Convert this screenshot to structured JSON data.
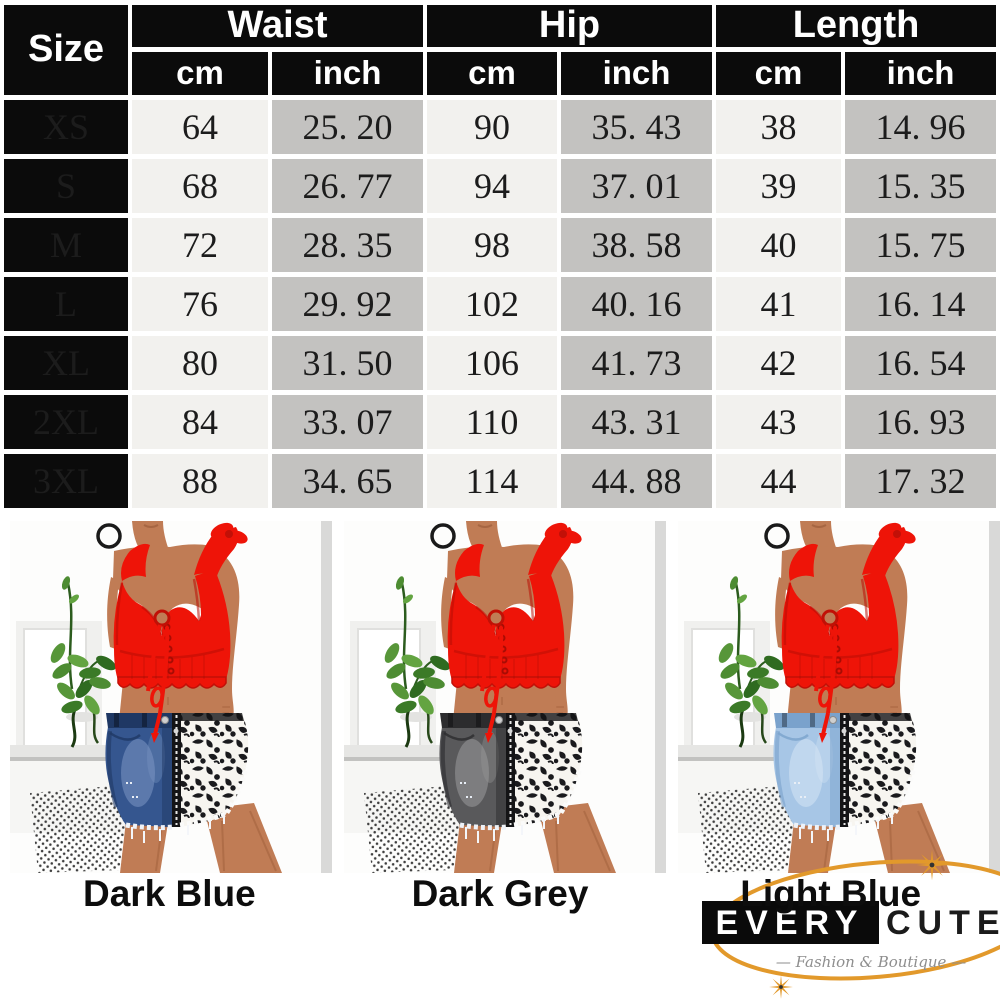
{
  "size_chart": {
    "corner_label": "Size",
    "groups": [
      "Waist",
      "Hip",
      "Length"
    ],
    "units": [
      "cm",
      "inch"
    ],
    "rows": [
      [
        "XS",
        "64",
        "25. 20",
        "90",
        "35. 43",
        "38",
        "14. 96"
      ],
      [
        "S",
        "68",
        "26. 77",
        "94",
        "37. 01",
        "39",
        "15. 35"
      ],
      [
        "M",
        "72",
        "28. 35",
        "98",
        "38. 58",
        "40",
        "15. 75"
      ],
      [
        "L",
        "76",
        "29. 92",
        "102",
        "40. 16",
        "41",
        "16. 14"
      ],
      [
        "XL",
        "80",
        "31. 50",
        "106",
        "41. 73",
        "42",
        "16. 54"
      ],
      [
        "2XL",
        "84",
        "33. 07",
        "110",
        "43. 31",
        "43",
        "16. 93"
      ],
      [
        "3XL",
        "88",
        "34. 65",
        "114",
        "44. 88",
        "44",
        "17. 32"
      ]
    ]
  },
  "products": [
    {
      "label": "Dark Blue",
      "denim_base": "#35568f",
      "denim_light": "#7b97c4",
      "denim_dark": "#1f3864"
    },
    {
      "label": "Dark Grey",
      "denim_base": "#59595b",
      "denim_light": "#9a9a9c",
      "denim_dark": "#2c2c2e"
    },
    {
      "label": "Light Blue",
      "denim_base": "#a7c6e6",
      "denim_light": "#d6e5f4",
      "denim_dark": "#7aa2cc"
    }
  ],
  "logo": {
    "brand_left": "EVERY",
    "brand_right": "CUTE",
    "tagline": "Fashion & Boutique",
    "gold": "#e2992b"
  },
  "palette": {
    "table_black": "#0b0b0b",
    "cell_light": "#f2f1ee",
    "cell_gray": "#c3c2c0",
    "skin": "#c07c55",
    "skin_shadow": "#a5633e",
    "top_red": "#ee1408",
    "top_red_dark": "#b90e05",
    "gold": "#e2992b",
    "leo_bg": "#f7f5f0",
    "leo_spot": "#1a1a1d",
    "dot": "#3d3d3d"
  }
}
